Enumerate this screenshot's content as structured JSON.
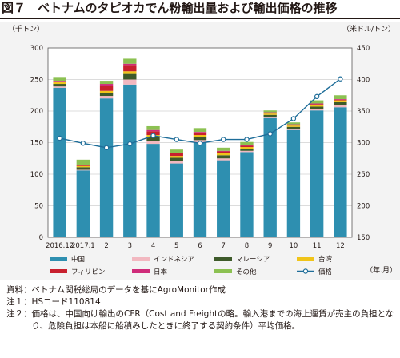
{
  "title": "図７　ベトナムのタピオカでん粉輸出量および輸出価格の推移",
  "chart_data": {
    "type": "bar+line",
    "y_left_unit": "（千トン）",
    "y_right_unit": "（米ドル/トン）",
    "x_unit": "（年.月）",
    "categories": [
      "2016.12",
      "2017.1",
      "2",
      "3",
      "4",
      "5",
      "6",
      "7",
      "8",
      "9",
      "10",
      "11",
      "12"
    ],
    "y_left_range": [
      0,
      300
    ],
    "y_left_ticks": [
      "0",
      "50",
      "100",
      "150",
      "200",
      "250",
      "300"
    ],
    "y_right_range": [
      150,
      450
    ],
    "y_right_ticks": [
      "150",
      "200",
      "250",
      "300",
      "350",
      "400",
      "450"
    ],
    "grid": true,
    "legend_position": "bottom",
    "series": [
      {
        "name": "中国",
        "kind": "bar",
        "color": "#2e8fb0",
        "values": [
          237,
          106,
          220,
          242,
          148,
          117,
          150,
          122,
          135,
          189,
          170,
          201,
          206
        ]
      },
      {
        "name": "インドネシア",
        "kind": "bar",
        "color": "#f2b8c0",
        "values": [
          2,
          1,
          4,
          8,
          5,
          4,
          4,
          3,
          2,
          2,
          2,
          2,
          3
        ]
      },
      {
        "name": "マレーシア",
        "kind": "bar",
        "color": "#3e5a2a",
        "values": [
          4,
          4,
          5,
          10,
          6,
          5,
          5,
          5,
          3,
          3,
          3,
          4,
          5
        ]
      },
      {
        "name": "台湾",
        "kind": "bar",
        "color": "#f0c419",
        "values": [
          3,
          2,
          3,
          3,
          3,
          3,
          3,
          3,
          3,
          2,
          2,
          3,
          3
        ]
      },
      {
        "name": "フィリピン",
        "kind": "bar",
        "color": "#c8202e",
        "values": [
          1,
          1,
          8,
          10,
          6,
          4,
          4,
          3,
          2,
          1,
          1,
          1,
          1
        ]
      },
      {
        "name": "日本",
        "kind": "bar",
        "color": "#cf2c7a",
        "values": [
          1,
          1,
          3,
          2,
          2,
          1,
          1,
          1,
          1,
          1,
          1,
          1,
          1
        ]
      },
      {
        "name": "その他",
        "kind": "bar",
        "color": "#8cc152",
        "values": [
          6,
          8,
          5,
          8,
          6,
          5,
          6,
          5,
          5,
          3,
          3,
          5,
          6
        ]
      },
      {
        "name": "価格",
        "kind": "line",
        "axis": "right",
        "color": "#1e6d99",
        "values": [
          307,
          299,
          292,
          298,
          311,
          305,
          299,
          305,
          305,
          314,
          338,
          373,
          401
        ]
      }
    ]
  },
  "notes": [
    {
      "label": "資料：",
      "text": "ベトナム関税総局のデータを基にAgroMonitor作成"
    },
    {
      "label": "注１：",
      "text": "HSコード110814"
    },
    {
      "label": "注２：",
      "text": "価格は、中国向け輸出のCFR（Cost and Freightの略。輸入港までの海上運賃が売主の負担となり、危険負担は本船に船積みしたときに終了する契約条件）平均価格。"
    }
  ]
}
